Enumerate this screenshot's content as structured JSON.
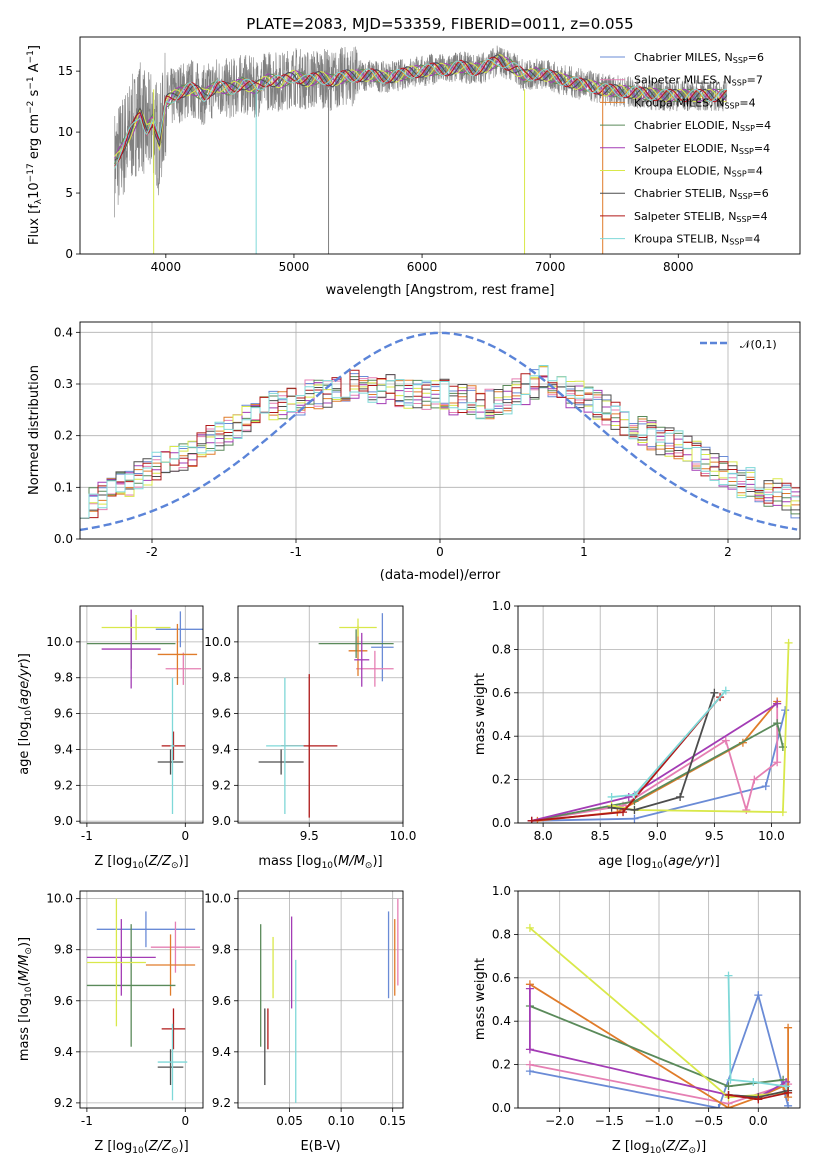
{
  "title": "PLATE=2083, MJD=53359, FIBERID=0011, z=0.055",
  "colors": {
    "Chabrier MILES": "#6a8bd6",
    "Salpeter MILES": "#e57fb3",
    "Kroupa MILES": "#e07c2a",
    "Chabrier ELODIE": "#5a8a5a",
    "Salpeter ELODIE": "#a33cb5",
    "Kroupa ELODIE": "#d9e84a",
    "Chabrier STELIB": "#4d4d4d",
    "Salpeter STELIB": "#b01818",
    "Kroupa STELIB": "#7fd8d8",
    "spectrum": "#808080",
    "normal": "#5b84d8"
  },
  "chart_data": [
    {
      "id": "spectrum",
      "type": "line",
      "title": "PLATE=2083, MJD=53359, FIBERID=0011, z=0.055",
      "xlabel": "wavelength [Angstrom, rest frame]",
      "ylabel": "Flux [f_λ 10^-17 erg cm^-2 s^-1 A^-1]",
      "xlim": [
        3330,
        8950
      ],
      "ylim": [
        0,
        17.8
      ],
      "xticks": [
        "4000",
        "5000",
        "6000",
        "7000",
        "8000"
      ],
      "yticks": [
        "0",
        "5",
        "10",
        "15"
      ],
      "legend_position": "upper right",
      "continuum": {
        "x": [
          3600,
          3650,
          3700,
          3750,
          3800,
          3850,
          3900,
          3950,
          4000,
          4100,
          4200,
          4300,
          4400,
          4500,
          4600,
          4700,
          4800,
          4900,
          5000,
          5100,
          5200,
          5300,
          5400,
          5500,
          5600,
          5700,
          5800,
          5900,
          6000,
          6100,
          6200,
          6300,
          6400,
          6500,
          6600,
          6700,
          6800,
          6900,
          7000,
          7100,
          7200,
          7300,
          7400,
          7500,
          7600,
          7700,
          7800,
          7900
        ],
        "y": [
          7.5,
          8.5,
          9.5,
          10.5,
          11.5,
          10.2,
          11,
          9,
          12.5,
          13.2,
          13.6,
          13,
          13.8,
          13.5,
          14,
          13.6,
          14.3,
          14.1,
          14.6,
          14.2,
          14.5,
          14.2,
          14.6,
          14.6,
          14.7,
          14.5,
          14.6,
          14.9,
          15,
          15.2,
          15.1,
          15.4,
          15.1,
          15.4,
          15.9,
          15.4,
          14.6,
          14.8,
          14.6,
          14.3,
          14.0,
          13.8,
          13.5,
          13.4,
          13.3,
          13.2,
          13.1,
          13.0
        ]
      },
      "series": [
        {
          "name": "Chabrier MILES, N_SSP=6",
          "name_html": "Chabrier MILES, N<tspan font-size='8' dy='2'>SSP</tspan><tspan dy='-2'>=6</tspan>"
        },
        {
          "name": "Salpeter MILES, N_SSP=7",
          "name_html": "Salpeter MILES, N<tspan font-size='8' dy='2'>SSP</tspan><tspan dy='-2'>=7</tspan>"
        },
        {
          "name": "Kroupa MILES, N_SSP=4",
          "name_html": "Kroupa MILES, N<tspan font-size='8' dy='2'>SSP</tspan><tspan dy='-2'>=4</tspan>"
        },
        {
          "name": "Chabrier ELODIE, N_SSP=4",
          "name_html": "Chabrier ELODIE, N<tspan font-size='8' dy='2'>SSP</tspan><tspan dy='-2'>=4</tspan>"
        },
        {
          "name": "Salpeter ELODIE, N_SSP=4",
          "name_html": "Salpeter ELODIE, N<tspan font-size='8' dy='2'>SSP</tspan><tspan dy='-2'>=4</tspan>"
        },
        {
          "name": "Kroupa ELODIE, N_SSP=4",
          "name_html": "Kroupa ELODIE, N<tspan font-size='8' dy='2'>SSP</tspan><tspan dy='-2'>=4</tspan>"
        },
        {
          "name": "Chabrier STELIB, N_SSP=6",
          "name_html": "Chabrier STELIB, N<tspan font-size='8' dy='2'>SSP</tspan><tspan dy='-2'>=6</tspan>"
        },
        {
          "name": "Salpeter STELIB, N_SSP=4",
          "name_html": "Salpeter STELIB, N<tspan font-size='8' dy='2'>SSP</tspan><tspan dy='-2'>=4</tspan>"
        },
        {
          "name": "Kroupa STELIB, N_SSP=4",
          "name_html": "Kroupa STELIB, N<tspan font-size='8' dy='2'>SSP</tspan><tspan dy='-2'>=4</tspan>"
        }
      ]
    },
    {
      "id": "residuals",
      "type": "line",
      "xlabel": "(data-model)/error",
      "ylabel": "Normed distribution",
      "xlim": [
        -2.5,
        2.5
      ],
      "ylim": [
        0,
        0.42
      ],
      "xticks": [
        -2,
        -1,
        0,
        1,
        2
      ],
      "yticks": [
        0.0,
        0.1,
        0.2,
        0.3,
        0.4
      ],
      "grid": true,
      "legend": "𝒩(0,1)",
      "legend_position": "upper right",
      "bin_width": 0.1,
      "base_hist": [
        0.07,
        0.07,
        0.08,
        0.09,
        0.1,
        0.11,
        0.12,
        0.13,
        0.14,
        0.15,
        0.15,
        0.16,
        0.17,
        0.18,
        0.19,
        0.2,
        0.21,
        0.22,
        0.23,
        0.24,
        0.25,
        0.26,
        0.26,
        0.27,
        0.27,
        0.28,
        0.28,
        0.28,
        0.29,
        0.29,
        0.3,
        0.29,
        0.29,
        0.29,
        0.29,
        0.28,
        0.28,
        0.28,
        0.28,
        0.28,
        0.28,
        0.27,
        0.27,
        0.27,
        0.26,
        0.26,
        0.27,
        0.27,
        0.28,
        0.29,
        0.3,
        0.31,
        0.3,
        0.29,
        0.28,
        0.28,
        0.27,
        0.26,
        0.25,
        0.24,
        0.23,
        0.22,
        0.21,
        0.2,
        0.19,
        0.19,
        0.18,
        0.17,
        0.16,
        0.15,
        0.14,
        0.13,
        0.12,
        0.11,
        0.11,
        0.1,
        0.09,
        0.09,
        0.08,
        0.07
      ]
    },
    {
      "id": "age-vs-Z",
      "type": "scatter",
      "xlabel": "Z [log10(Z/Z☉)]",
      "ylabel": "age [log10(age/yr)]",
      "xlim": [
        -1.07,
        0.18
      ],
      "ylim": [
        8.99,
        10.2
      ],
      "xticks": [
        -1,
        0
      ],
      "yticks": [
        "9.0",
        "9.2",
        "9.4",
        "9.6",
        "9.8",
        "10.0"
      ],
      "grid": true,
      "points": [
        {
          "series": "Chabrier MILES",
          "x": -0.05,
          "xerr": 0.25,
          "y": 10.07,
          "yerr": 0.1
        },
        {
          "series": "Salpeter MILES",
          "x": -0.02,
          "xerr": 0.18,
          "y": 9.85,
          "yerr": 0.09
        },
        {
          "series": "Kroupa MILES",
          "x": -0.08,
          "xerr": 0.2,
          "y": 9.93,
          "yerr": 0.17
        },
        {
          "series": "Chabrier ELODIE",
          "x": -0.55,
          "xerr": 0.45,
          "y": 9.99,
          "yerr": 0.14
        },
        {
          "series": "Salpeter ELODIE",
          "x": -0.55,
          "xerr": 0.3,
          "y": 9.96,
          "yerr": 0.22
        },
        {
          "series": "Kroupa ELODIE",
          "x": -0.5,
          "xerr": 0.35,
          "y": 10.08,
          "yerr": 0.07
        },
        {
          "series": "Chabrier STELIB",
          "x": -0.15,
          "xerr": 0.13,
          "y": 9.33,
          "yerr": 0.07
        },
        {
          "series": "Salpeter STELIB",
          "x": -0.12,
          "xerr": 0.12,
          "y": 9.42,
          "yerr": 0.08
        },
        {
          "series": "Kroupa STELIB",
          "x": -0.13,
          "xerr": 0.02,
          "y": 9.42,
          "yerr": 0.38
        }
      ]
    },
    {
      "id": "age-vs-mass",
      "type": "scatter",
      "xlabel": "mass [log10(M/M☉)]",
      "ylabel": "",
      "xlim": [
        9.12,
        10.0
      ],
      "ylim": [
        8.99,
        10.2
      ],
      "xticks": [
        "9.5",
        "10.0"
      ],
      "yticks": [
        "9.0",
        "9.2",
        "9.4",
        "9.6",
        "9.8",
        "10.0"
      ],
      "grid": true,
      "points": [
        {
          "series": "Chabrier MILES",
          "x": 9.89,
          "xerr": 0.06,
          "y": 9.97,
          "yerr": 0.19
        },
        {
          "series": "Salpeter MILES",
          "x": 9.85,
          "xerr": 0.1,
          "y": 9.85,
          "yerr": 0.1
        },
        {
          "series": "Kroupa MILES",
          "x": 9.76,
          "xerr": 0.05,
          "y": 9.95,
          "yerr": 0.14
        },
        {
          "series": "Chabrier ELODIE",
          "x": 9.75,
          "xerr": 0.2,
          "y": 9.99,
          "yerr": 0.08
        },
        {
          "series": "Salpeter ELODIE",
          "x": 9.78,
          "xerr": 0.04,
          "y": 9.9,
          "yerr": 0.15
        },
        {
          "series": "Kroupa ELODIE",
          "x": 9.76,
          "xerr": 0.1,
          "y": 10.08,
          "yerr": 0.05
        },
        {
          "series": "Chabrier STELIB",
          "x": 9.35,
          "xerr": 0.12,
          "y": 9.33,
          "yerr": 0.07
        },
        {
          "series": "Salpeter STELIB",
          "x": 9.5,
          "xerr": 0.15,
          "y": 9.42,
          "yerr": 0.4
        },
        {
          "series": "Kroupa STELIB",
          "x": 9.37,
          "xerr": 0.1,
          "y": 9.42,
          "yerr": 0.38
        }
      ]
    },
    {
      "id": "mass-weight-vs-age",
      "type": "line",
      "xlabel": "age [log10(age/yr)]",
      "ylabel": "mass weight",
      "xlim": [
        7.78,
        10.25
      ],
      "ylim": [
        0,
        1.0
      ],
      "xticks": [
        "8.0",
        "8.5",
        "9.0",
        "9.5",
        "10.0"
      ],
      "yticks": [
        "0.0",
        "0.2",
        "0.4",
        "0.6",
        "0.8",
        "1.0"
      ],
      "grid": true,
      "series": [
        {
          "name": "Chabrier MILES",
          "x": [
            7.9,
            8.8,
            9.95,
            10.12
          ],
          "y": [
            0.01,
            0.02,
            0.17,
            0.52
          ]
        },
        {
          "name": "Salpeter MILES",
          "x": [
            7.9,
            8.7,
            9.6,
            9.78,
            9.85,
            10.05,
            10.05
          ],
          "y": [
            0.01,
            0.08,
            0.38,
            0.06,
            0.2,
            0.28,
            0.55
          ]
        },
        {
          "name": "Kroupa MILES",
          "x": [
            7.95,
            8.65,
            9.75,
            10.05
          ],
          "y": [
            0.01,
            0.05,
            0.37,
            0.56
          ]
        },
        {
          "name": "Chabrier ELODIE",
          "x": [
            7.9,
            8.8,
            10.05,
            10.1
          ],
          "y": [
            0.01,
            0.1,
            0.46,
            0.35
          ]
        },
        {
          "name": "Salpeter ELODIE",
          "x": [
            7.9,
            8.75,
            10.05
          ],
          "y": [
            0.01,
            0.12,
            0.55
          ]
        },
        {
          "name": "Kroupa ELODIE",
          "x": [
            8.6,
            8.8,
            10.1,
            10.15
          ],
          "y": [
            0.08,
            0.06,
            0.05,
            0.83
          ]
        },
        {
          "name": "Chabrier STELIB",
          "x": [
            8.6,
            8.8,
            9.2,
            9.5
          ],
          "y": [
            0.07,
            0.06,
            0.12,
            0.6
          ]
        },
        {
          "name": "Salpeter STELIB",
          "x": [
            7.9,
            8.7,
            9.55
          ],
          "y": [
            0.01,
            0.05,
            0.58
          ]
        },
        {
          "name": "Kroupa STELIB",
          "x": [
            8.6,
            8.8,
            9.6
          ],
          "y": [
            0.12,
            0.13,
            0.61
          ]
        }
      ]
    },
    {
      "id": "mass-vs-Z",
      "type": "scatter",
      "xlabel": "Z [log10(Z/Z☉)]",
      "ylabel": "mass [log10(M/M☉)]",
      "xlim": [
        -1.07,
        0.18
      ],
      "ylim": [
        9.18,
        10.03
      ],
      "xticks": [
        -1,
        0
      ],
      "yticks": [
        "9.2",
        "9.4",
        "9.6",
        "9.8",
        "10.0"
      ],
      "grid": true,
      "points": [
        {
          "series": "Chabrier MILES",
          "x": -0.4,
          "xerr": 0.5,
          "y": 9.88,
          "yerr": 0.07
        },
        {
          "series": "Salpeter MILES",
          "x": -0.1,
          "xerr": 0.25,
          "y": 9.81,
          "yerr": 0.1
        },
        {
          "series": "Kroupa MILES",
          "x": -0.15,
          "xerr": 0.25,
          "y": 9.74,
          "yerr": 0.12
        },
        {
          "series": "Chabrier ELODIE",
          "x": -0.55,
          "xerr": 0.45,
          "y": 9.66,
          "yerr": 0.24
        },
        {
          "series": "Salpeter ELODIE",
          "x": -0.65,
          "xerr": 0.35,
          "y": 9.77,
          "yerr": 0.15
        },
        {
          "series": "Kroupa ELODIE",
          "x": -0.7,
          "xerr": 0.3,
          "y": 9.75,
          "yerr": 0.25
        },
        {
          "series": "Chabrier STELIB",
          "x": -0.15,
          "xerr": 0.13,
          "y": 9.34,
          "yerr": 0.07
        },
        {
          "series": "Salpeter STELIB",
          "x": -0.12,
          "xerr": 0.12,
          "y": 9.49,
          "yerr": 0.08
        },
        {
          "series": "Kroupa STELIB",
          "x": -0.13,
          "xerr": 0.15,
          "y": 9.36,
          "yerr": 0.15
        }
      ]
    },
    {
      "id": "mass-vs-EBV",
      "type": "scatter",
      "xlabel": "E(B-V)",
      "ylabel": "",
      "xlim": [
        0.0,
        0.16
      ],
      "ylim": [
        9.18,
        10.03
      ],
      "xticks": [
        "0.05",
        "0.10",
        "0.15"
      ],
      "yticks": [
        "9.2",
        "9.4",
        "9.6",
        "9.8",
        "10.0"
      ],
      "grid": true,
      "points": [
        {
          "series": "Chabrier MILES",
          "x": 0.146,
          "y": 9.78,
          "yerr": 0.17
        },
        {
          "series": "Salpeter MILES",
          "x": 0.155,
          "y": 9.83,
          "yerr": 0.17
        },
        {
          "series": "Kroupa MILES",
          "x": 0.152,
          "y": 9.77,
          "yerr": 0.15
        },
        {
          "series": "Chabrier ELODIE",
          "x": 0.022,
          "y": 9.66,
          "yerr": 0.24
        },
        {
          "series": "Salpeter ELODIE",
          "x": 0.052,
          "y": 9.75,
          "yerr": 0.18
        },
        {
          "series": "Kroupa ELODIE",
          "x": 0.034,
          "y": 9.73,
          "yerr": 0.12
        },
        {
          "series": "Chabrier STELIB",
          "x": 0.026,
          "y": 9.42,
          "yerr": 0.15
        },
        {
          "series": "Salpeter STELIB",
          "x": 0.029,
          "y": 9.49,
          "yerr": 0.08
        },
        {
          "series": "Kroupa STELIB",
          "x": 0.056,
          "y": 9.48,
          "yerr": 0.28
        }
      ]
    },
    {
      "id": "mass-weight-vs-Z",
      "type": "line",
      "xlabel": "Z [log10(Z/Z☉)]",
      "ylabel": "mass weight",
      "xlim": [
        -2.42,
        0.42
      ],
      "ylim": [
        0,
        1.0
      ],
      "xticks": [
        "−2.0",
        "−1.5",
        "−1.0",
        "−0.5",
        "0.0"
      ],
      "xtick_values": [
        -2.0,
        -1.5,
        -1.0,
        -0.5,
        0.0
      ],
      "yticks": [
        "0.0",
        "0.2",
        "0.4",
        "0.6",
        "0.8",
        "1.0"
      ],
      "grid": true,
      "series": [
        {
          "name": "Chabrier MILES",
          "x": [
            -2.3,
            -0.4,
            0.0,
            0.3
          ],
          "y": [
            0.17,
            0.0,
            0.52,
            0.01
          ]
        },
        {
          "name": "Salpeter MILES",
          "x": [
            -2.3,
            -0.3,
            0.3
          ],
          "y": [
            0.2,
            0.02,
            0.11
          ]
        },
        {
          "name": "Kroupa MILES",
          "x": [
            -2.3,
            -0.3,
            0.0,
            0.25,
            0.3,
            0.3
          ],
          "y": [
            0.57,
            0.0,
            0.05,
            0.1,
            0.05,
            0.37
          ]
        },
        {
          "name": "Chabrier ELODIE",
          "x": [
            -2.3,
            -0.3,
            0.25
          ],
          "y": [
            0.47,
            0.1,
            0.13
          ]
        },
        {
          "name": "Salpeter ELODIE",
          "x": [
            -2.3,
            -2.3,
            -0.3,
            0.0,
            0.28
          ],
          "y": [
            0.55,
            0.27,
            0.06,
            0.05,
            0.12
          ]
        },
        {
          "name": "Kroupa ELODIE",
          "x": [
            -2.3,
            -0.3,
            0.3
          ],
          "y": [
            0.83,
            0.05,
            0.07
          ]
        },
        {
          "name": "Chabrier STELIB",
          "x": [
            -0.3,
            0.0,
            0.3
          ],
          "y": [
            0.06,
            0.05,
            0.08
          ]
        },
        {
          "name": "Salpeter STELIB",
          "x": [
            -0.3,
            0.0,
            0.3
          ],
          "y": [
            0.06,
            0.04,
            0.07
          ]
        },
        {
          "name": "Kroupa STELIB",
          "x": [
            -0.3,
            -0.28,
            -0.05,
            0.28
          ],
          "y": [
            0.61,
            0.13,
            0.12,
            0.1
          ]
        }
      ]
    }
  ]
}
